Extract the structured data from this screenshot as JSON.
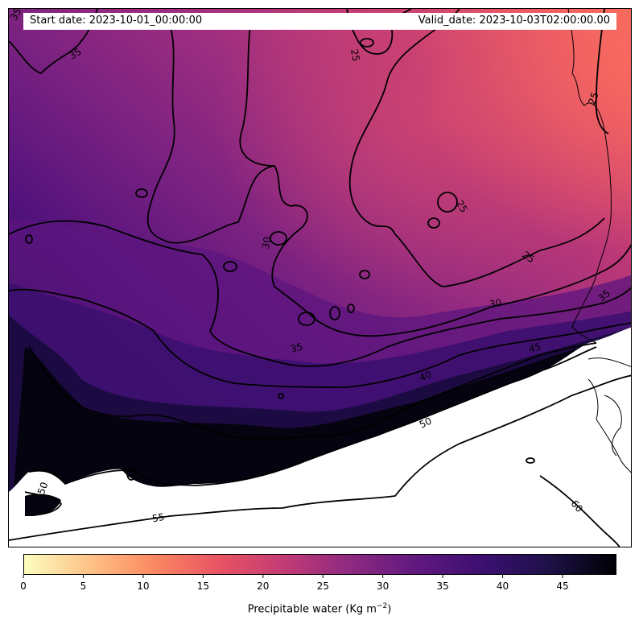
{
  "header": {
    "start_date": "Start date: 2023-10-01_00:00:00",
    "valid_date": "Valid_date: 2023-10-03T02:00:00.00"
  },
  "map": {
    "field": "precipitable water",
    "colormap": "magma_r",
    "contour_levels": [
      25,
      30,
      35,
      40,
      45,
      50,
      55,
      60
    ],
    "contour_labels": [
      "35",
      "25",
      "25",
      "25",
      "25",
      "30",
      "30",
      "35",
      "35",
      "40",
      "45",
      "50",
      "50",
      "55",
      "60"
    ],
    "masked_color": "#ffffff"
  },
  "colorbar": {
    "ticks": [
      "0",
      "5",
      "10",
      "15",
      "20",
      "25",
      "30",
      "35",
      "40",
      "45"
    ],
    "range": [
      0,
      49.5
    ],
    "colors": [
      "#fcfdbf",
      "#fec287",
      "#fb8761",
      "#e75263",
      "#c03a76",
      "#8c2981",
      "#5f187f",
      "#3b0f70",
      "#1d1147",
      "#000004"
    ],
    "title_prefix": "Precipitable water (Kg m",
    "title_exp": "−2",
    "title_suffix": ")"
  }
}
